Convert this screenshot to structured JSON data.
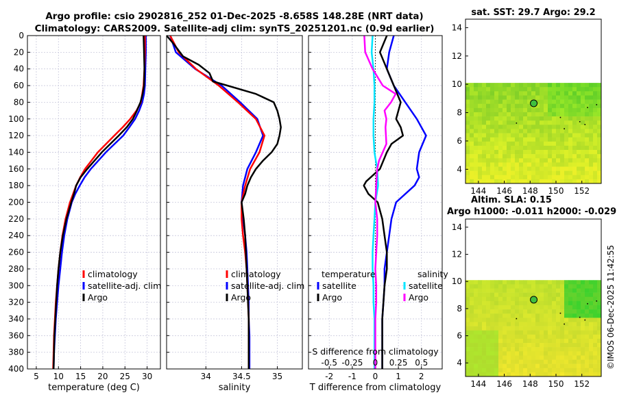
{
  "title_line1": "Argo profile: csio 2902816_252 01-Dec-2025 -8.658S 148.28E (NRT data)",
  "title_line2": "Climatology: CARS2009. Satellite-adj clim: synTS_20251201.nc (0.9d earlier)",
  "watermark": "©IMOS 06-Dec-2025 11:42:55",
  "colors": {
    "clim": "#ff0000",
    "sat": "#0000ff",
    "argo": "#000000",
    "cyan": "#00e5ff",
    "magenta": "#ff00ff",
    "grid": "#c8c8dc"
  },
  "chart_data": [
    {
      "type": "line",
      "id": "temp",
      "xlabel": "temperature (deg C)",
      "ylabel": "",
      "xlim": [
        3,
        33
      ],
      "ylim": [
        400,
        0
      ],
      "xticks": [
        5,
        10,
        15,
        20,
        25,
        30
      ],
      "yticks": [
        0,
        20,
        40,
        60,
        80,
        100,
        120,
        140,
        160,
        180,
        200,
        220,
        240,
        260,
        280,
        300,
        320,
        340,
        360,
        380,
        400
      ],
      "legend": {
        "position": "lower-right",
        "entries": [
          "climatology",
          "satellite-adj. clim",
          "Argo"
        ]
      },
      "series": [
        {
          "name": "climatology",
          "color": "clim",
          "depth": [
            0,
            20,
            40,
            60,
            80,
            90,
            100,
            110,
            120,
            140,
            160,
            170,
            180,
            190,
            200,
            220,
            240,
            260,
            280,
            300,
            320,
            340,
            360,
            380,
            400
          ],
          "values": [
            29.5,
            29.5,
            29.4,
            29.2,
            28.6,
            27.6,
            26.2,
            24.5,
            22.6,
            18.9,
            16.0,
            14.9,
            14.0,
            13.3,
            12.6,
            11.6,
            10.9,
            10.4,
            10.0,
            9.7,
            9.4,
            9.2,
            9.0,
            8.9,
            8.8
          ]
        },
        {
          "name": "satellite-adj. clim",
          "color": "sat",
          "depth": [
            0,
            20,
            40,
            60,
            70,
            80,
            90,
            100,
            110,
            120,
            140,
            160,
            170,
            180,
            190,
            200,
            220,
            240,
            260,
            280,
            300,
            320,
            340,
            360,
            380,
            400
          ],
          "values": [
            29.7,
            29.7,
            29.6,
            29.5,
            29.3,
            28.9,
            28.2,
            27.3,
            26.0,
            24.6,
            20.7,
            17.3,
            15.9,
            14.8,
            13.8,
            13.0,
            12.0,
            11.3,
            10.8,
            10.4,
            10.0,
            9.7,
            9.4,
            9.2,
            9.0,
            8.9
          ]
        },
        {
          "name": "Argo",
          "color": "argo",
          "depth": [
            0,
            20,
            40,
            60,
            70,
            80,
            90,
            100,
            110,
            120,
            140,
            160,
            170,
            180,
            190,
            200,
            220,
            240,
            260,
            280,
            300,
            320,
            340,
            360,
            380,
            400
          ],
          "values": [
            29.2,
            29.3,
            29.4,
            29.3,
            29.0,
            28.5,
            27.7,
            26.8,
            25.4,
            23.6,
            19.8,
            16.5,
            15.0,
            14.0,
            13.5,
            12.9,
            11.8,
            11.0,
            10.4,
            10.0,
            9.7,
            9.5,
            9.3,
            9.1,
            9.0,
            8.9
          ]
        }
      ]
    },
    {
      "type": "line",
      "id": "sal",
      "xlabel": "salinity",
      "ylabel": "",
      "xlim": [
        33.45,
        35.35
      ],
      "ylim": [
        400,
        0
      ],
      "xticks": [
        34,
        34.5,
        35
      ],
      "legend": {
        "position": "lower-right",
        "entries": [
          "climatology",
          "satellite-adj. clim",
          "Argo"
        ]
      },
      "series": [
        {
          "name": "climatology",
          "color": "clim",
          "depth": [
            0,
            20,
            40,
            60,
            80,
            100,
            120,
            140,
            160,
            180,
            200,
            220,
            240,
            260,
            280,
            300,
            320,
            340,
            360,
            380,
            400
          ],
          "values": [
            33.5,
            33.62,
            33.86,
            34.18,
            34.45,
            34.7,
            34.82,
            34.75,
            34.62,
            34.55,
            34.5,
            34.5,
            34.52,
            34.55,
            34.57,
            34.58,
            34.59,
            34.6,
            34.6,
            34.6,
            34.6
          ]
        },
        {
          "name": "satellite-adj. clim",
          "color": "sat",
          "depth": [
            0,
            20,
            40,
            60,
            80,
            100,
            120,
            140,
            160,
            180,
            200,
            220,
            240,
            260,
            280,
            300,
            320,
            340,
            360,
            380,
            400
          ],
          "values": [
            33.5,
            33.58,
            33.85,
            34.22,
            34.48,
            34.72,
            34.8,
            34.7,
            34.58,
            34.52,
            34.5,
            34.52,
            34.55,
            34.57,
            34.58,
            34.59,
            34.6,
            34.6,
            34.61,
            34.61,
            34.61
          ]
        },
        {
          "name": "Argo",
          "color": "argo",
          "depth": [
            0,
            10,
            25,
            35,
            45,
            55,
            60,
            70,
            80,
            90,
            100,
            110,
            120,
            130,
            140,
            150,
            160,
            170,
            180,
            190,
            200,
            220,
            240,
            260,
            280,
            300,
            320,
            340,
            360,
            380,
            400
          ],
          "values": [
            33.45,
            33.55,
            33.68,
            33.9,
            34.05,
            34.1,
            34.3,
            34.7,
            34.95,
            35.0,
            35.03,
            35.05,
            35.03,
            35.0,
            34.92,
            34.8,
            34.7,
            34.63,
            34.58,
            34.55,
            34.5,
            34.53,
            34.55,
            34.56,
            34.57,
            34.58,
            34.59,
            34.6,
            34.6,
            34.6,
            34.6
          ]
        }
      ]
    },
    {
      "type": "line",
      "id": "diff",
      "xlabel": "T difference from climatology",
      "top_xlabel": "S difference from climatology",
      "xlim": [
        -2.9,
        2.9
      ],
      "ylim": [
        400,
        0
      ],
      "xticks": [
        -2,
        -1,
        0,
        1,
        2
      ],
      "top_xticks": [
        -0.5,
        -0.25,
        0,
        0.25,
        0.5
      ],
      "top_xticklabels": [
        "-0.5",
        "-0.25",
        "0",
        "0.25",
        "0.5"
      ],
      "legend_temp": {
        "title": "temperature",
        "entries": [
          "satellite",
          "Argo"
        ]
      },
      "legend_sal": {
        "title": "salinity",
        "entries": [
          "satellite",
          "Argo"
        ]
      },
      "series": [
        {
          "name": "T satellite",
          "color": "sat",
          "depth": [
            0,
            20,
            40,
            60,
            80,
            100,
            120,
            140,
            160,
            170,
            180,
            200,
            220,
            240,
            260,
            280,
            300,
            320,
            340,
            360,
            380,
            400
          ],
          "values": [
            0.8,
            0.6,
            0.5,
            0.8,
            1.3,
            1.8,
            2.2,
            1.9,
            1.8,
            1.9,
            1.7,
            0.9,
            0.7,
            0.6,
            0.5,
            0.4,
            0.4,
            0.35,
            0.3,
            0.3,
            0.3,
            0.3
          ]
        },
        {
          "name": "T Argo",
          "color": "argo",
          "depth": [
            0,
            20,
            40,
            60,
            80,
            100,
            110,
            120,
            130,
            140,
            160,
            175,
            180,
            190,
            200,
            220,
            240,
            260,
            280,
            300,
            320,
            340,
            360,
            380,
            400
          ],
          "values": [
            0.5,
            0.2,
            0.5,
            0.8,
            1.1,
            0.9,
            1.1,
            1.2,
            0.7,
            0.5,
            0.2,
            -0.4,
            -0.5,
            -0.3,
            0.1,
            0.3,
            0.4,
            0.5,
            0.5,
            0.4,
            0.35,
            0.3,
            0.3,
            0.3,
            0.3
          ]
        },
        {
          "name": "S satellite",
          "color": "cyan",
          "depth": [
            0,
            20,
            40,
            60,
            80,
            100,
            120,
            140,
            160,
            180,
            200,
            220,
            240,
            260,
            280,
            300,
            320,
            340,
            360,
            380,
            400
          ],
          "values": [
            -0.03,
            -0.04,
            -0.02,
            -0.01,
            -0.01,
            -0.02,
            -0.02,
            -0.01,
            0.02,
            0.03,
            0.0,
            -0.01,
            -0.02,
            -0.03,
            -0.03,
            -0.02,
            -0.02,
            -0.01,
            -0.01,
            -0.01,
            -0.01
          ]
        },
        {
          "name": "S Argo",
          "color": "magenta",
          "depth": [
            0,
            20,
            40,
            60,
            70,
            80,
            90,
            100,
            110,
            130,
            140,
            150,
            160,
            180,
            200,
            220,
            240,
            260,
            280,
            300,
            320,
            340,
            360,
            380,
            400
          ],
          "values": [
            -0.12,
            -0.11,
            -0.03,
            0.08,
            0.22,
            0.17,
            0.1,
            0.12,
            0.11,
            0.12,
            0.08,
            0.04,
            0.02,
            0.01,
            0.0,
            0.02,
            0.02,
            0.01,
            0.0,
            0.01,
            0.01,
            0.0,
            0.0,
            0.0,
            0.0
          ]
        }
      ]
    },
    {
      "type": "heatmap",
      "id": "sst",
      "title": "sat. SST: 29.7 Argo: 29.2",
      "xlim": [
        143,
        153.5
      ],
      "ylim": [
        3,
        14.6
      ],
      "xticks": [
        144,
        146,
        148,
        150,
        152
      ],
      "yticks": [
        4,
        6,
        8,
        10,
        12,
        14
      ],
      "data_ymax": 10.1,
      "marker": {
        "lon": 148.28,
        "lat": 8.658
      }
    },
    {
      "type": "heatmap",
      "id": "sla",
      "title": "Altim. SLA: 0.15",
      "subtitle": "Argo h1000: -0.011 h2000: -0.029",
      "xlim": [
        143,
        153.5
      ],
      "ylim": [
        3,
        14.6
      ],
      "xticks": [
        144,
        146,
        148,
        150,
        152
      ],
      "yticks": [
        4,
        6,
        8,
        10,
        12,
        14
      ],
      "data_ymax": 10.1,
      "marker": {
        "lon": 148.28,
        "lat": 8.658
      }
    }
  ]
}
